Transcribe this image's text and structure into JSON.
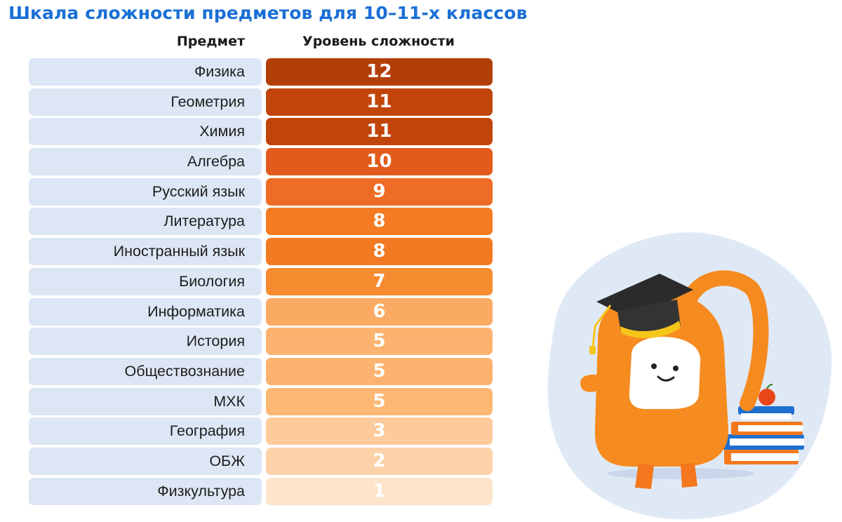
{
  "title": "Шкала сложности предметов для 10–11-х классов",
  "headers": {
    "subject": "Предмет",
    "level": "Уровень сложности"
  },
  "chart_data": {
    "type": "bar",
    "title": "Шкала сложности предметов для 10–11-х классов",
    "xlabel": "Предмет",
    "ylabel": "Уровень сложности",
    "categories": [
      "Физика",
      "Геометрия",
      "Химия",
      "Алгебра",
      "Русский язык",
      "Литература",
      "Иностранный язык",
      "Биология",
      "Информатика",
      "История",
      "Обществознание",
      "МХК",
      "География",
      "ОБЖ",
      "Физкультура"
    ],
    "values": [
      12,
      11,
      11,
      10,
      9,
      8,
      8,
      7,
      6,
      5,
      5,
      5,
      3,
      2,
      1
    ],
    "colors": [
      "#b33f08",
      "#c1450a",
      "#c1450a",
      "#e25b1c",
      "#ee6c25",
      "#f47b22",
      "#f27a23",
      "#f68b30",
      "#fbaa63",
      "#fcb370",
      "#fcb370",
      "#fdb874",
      "#fdcb9b",
      "#fdd2a9",
      "#fee4ca"
    ],
    "label_color": "#ffffff",
    "label_bg": "#dde6f4"
  }
}
